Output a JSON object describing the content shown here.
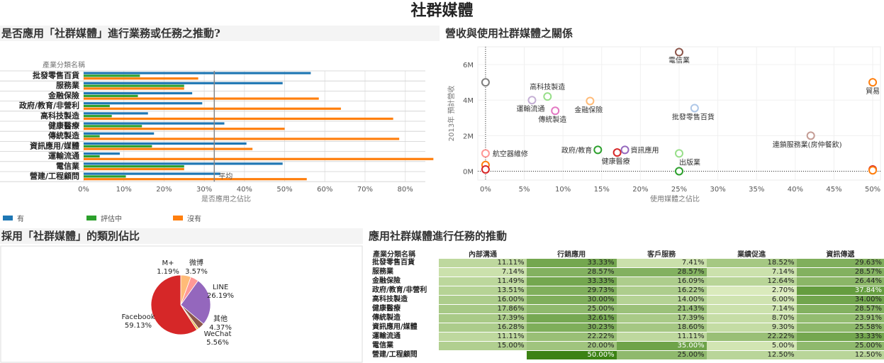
{
  "title": "社群媒體",
  "panels": {
    "bar_title": "是否應用「社群媒體」進行業務或任務之推動?",
    "scatter_title": "營收與使用社群媒體之關係",
    "pie_title": "採用「社群媒體」的類別佔比",
    "heatmap_title": "應用社群媒體進行任務的推動"
  },
  "chart_data": [
    {
      "type": "bar",
      "row_header": "產業分類名稱",
      "categories": [
        "批發零售百貨",
        "服務業",
        "金融保險",
        "政府/教育/非營利",
        "高科技製造",
        "健康醫療",
        "傳統製造",
        "資訊應用/媒體",
        "運輸流通",
        "電信業",
        "營建/工程顧問"
      ],
      "series": [
        {
          "name": "有",
          "color": "#1f77b4",
          "values": [
            56.5,
            49.5,
            27.0,
            29.5,
            16.0,
            35.0,
            17.5,
            40.5,
            9.0,
            49.5,
            34.0
          ]
        },
        {
          "name": "評估中",
          "color": "#2ca02c",
          "values": [
            14.0,
            25.0,
            13.5,
            6.5,
            7.0,
            14.5,
            4.0,
            17.0,
            4.0,
            25.0,
            10.5
          ]
        },
        {
          "name": "沒有",
          "color": "#ff7f0e",
          "values": [
            28.5,
            25.0,
            58.5,
            64.0,
            77.0,
            50.0,
            78.5,
            42.0,
            87.0,
            25.0,
            55.5
          ]
        }
      ],
      "xlabel": "是否應用之佔比",
      "xticks": [
        "0%",
        "10%",
        "20%",
        "30%",
        "40%",
        "50%",
        "60%",
        "70%",
        "80%"
      ],
      "xlim": [
        0,
        85
      ],
      "reference_line": {
        "value": 32.5,
        "label": "平均"
      },
      "legend": [
        "有",
        "評估中",
        "沒有"
      ],
      "legend_position": "bottom"
    },
    {
      "type": "scatter",
      "xlabel": "使用媒體之佔比",
      "ylabel": "2013年 預計營收",
      "xlim": [
        -1,
        51
      ],
      "ylim": [
        -0.5,
        7
      ],
      "xticks": [
        "0%",
        "5%",
        "10%",
        "15%",
        "20%",
        "25%",
        "30%",
        "35%",
        "40%",
        "45%",
        "50%"
      ],
      "yticks": [
        "0M",
        "2M",
        "4M",
        "6M"
      ],
      "points": [
        {
          "label": "電信業",
          "x": 25,
          "y": 6.7,
          "color": "#8c564b"
        },
        {
          "label": "貿易",
          "x": 50,
          "y": 5.0,
          "color": "#ff7f0e"
        },
        {
          "label": "高科技製造",
          "x": 8,
          "y": 4.2,
          "color": "#98df8a"
        },
        {
          "label": "運輸流通",
          "x": 6,
          "y": 4.0,
          "color": "#c5b0d5"
        },
        {
          "label": "金融保險",
          "x": 13.5,
          "y": 3.95,
          "color": "#ffbb78"
        },
        {
          "label": "傳統製造",
          "x": 9,
          "y": 3.4,
          "color": "#e377c2"
        },
        {
          "label": "批發零售百貨",
          "x": 27,
          "y": 3.55,
          "color": "#aec7e8"
        },
        {
          "label": "連鎖服務業(房仲餐飲)",
          "x": 42,
          "y": 2.0,
          "color": "#c49c94"
        },
        {
          "label": "航空器維修",
          "x": 0,
          "y": 1.0,
          "color": "#ff9896"
        },
        {
          "label": "政府/教育",
          "x": 14.5,
          "y": 1.2,
          "color": "#2ca02c"
        },
        {
          "label": "健康醫療",
          "x": 17,
          "y": 1.05,
          "color": "#d62728"
        },
        {
          "label": "資訊應用",
          "x": 18,
          "y": 1.2,
          "color": "#9467bd"
        },
        {
          "label": "出版業",
          "x": 25,
          "y": 1.0,
          "color": "#98df8a"
        },
        {
          "label": "",
          "x": 0,
          "y": 5.0,
          "color": "#7f7f7f"
        },
        {
          "label": "",
          "x": 0,
          "y": 0.35,
          "color": "#ff7f0e"
        },
        {
          "label": "",
          "x": 0,
          "y": 0.1,
          "color": "#d62728"
        },
        {
          "label": "",
          "x": 25,
          "y": 0.0,
          "color": "#2ca02c"
        },
        {
          "label": "",
          "x": 50,
          "y": 0.1,
          "color": "#d62728"
        },
        {
          "label": "",
          "x": 50,
          "y": 0.05,
          "color": "#ff7f0e"
        }
      ]
    },
    {
      "type": "pie",
      "slices": [
        {
          "name": "Facebook",
          "value": 59.13,
          "label": "59.13%",
          "color": "#d62728"
        },
        {
          "name": "WeChat",
          "value": 5.56,
          "label": "5.56%",
          "color": "#ffbb78"
        },
        {
          "name": "其他",
          "value": 4.37,
          "label": "4.37%",
          "color": "#ff9896"
        },
        {
          "name": "LINE",
          "value": 26.19,
          "label": "26.19%",
          "color": "#9467bd"
        },
        {
          "name": "微博",
          "value": 3.57,
          "label": "3.57%",
          "color": "#8c564b"
        },
        {
          "name": "M+",
          "value": 1.19,
          "label": "1.19%",
          "color": "#e7ba52"
        }
      ]
    },
    {
      "type": "heatmap",
      "row_header": "產業分類名稱",
      "columns": [
        "內部溝通",
        "行銷應用",
        "客戶服務",
        "業績促進",
        "資訊傳遞"
      ],
      "rows": [
        {
          "name": "批發零售百貨",
          "values": [
            "11.11%",
            "33.33%",
            "7.41%",
            "18.52%",
            "29.63%"
          ]
        },
        {
          "name": "服務業",
          "values": [
            "7.14%",
            "28.57%",
            "28.57%",
            "7.14%",
            "28.57%"
          ]
        },
        {
          "name": "金融保險",
          "values": [
            "11.49%",
            "33.33%",
            "16.09%",
            "12.64%",
            "26.44%"
          ]
        },
        {
          "name": "政府/教育/非營利",
          "values": [
            "13.51%",
            "29.73%",
            "16.22%",
            "2.70%",
            "37.84%"
          ]
        },
        {
          "name": "高科技製造",
          "values": [
            "16.00%",
            "30.00%",
            "14.00%",
            "6.00%",
            "34.00%"
          ]
        },
        {
          "name": "健康醫療",
          "values": [
            "17.86%",
            "25.00%",
            "21.43%",
            "7.14%",
            "28.57%"
          ]
        },
        {
          "name": "傳統製造",
          "values": [
            "17.39%",
            "32.61%",
            "17.39%",
            "8.70%",
            "23.91%"
          ]
        },
        {
          "name": "資訊應用/媒體",
          "values": [
            "16.28%",
            "30.23%",
            "18.60%",
            "9.30%",
            "25.58%"
          ]
        },
        {
          "name": "運輸流通",
          "values": [
            "11.11%",
            "22.22%",
            "11.11%",
            "22.22%",
            "33.33%"
          ]
        },
        {
          "name": "電信業",
          "values": [
            "15.00%",
            "20.00%",
            "35.00%",
            "5.00%",
            "25.00%"
          ]
        },
        {
          "name": "營建/工程顧問",
          "values": [
            "",
            "50.00%",
            "25.00%",
            "12.50%",
            "12.50%"
          ]
        }
      ]
    }
  ]
}
